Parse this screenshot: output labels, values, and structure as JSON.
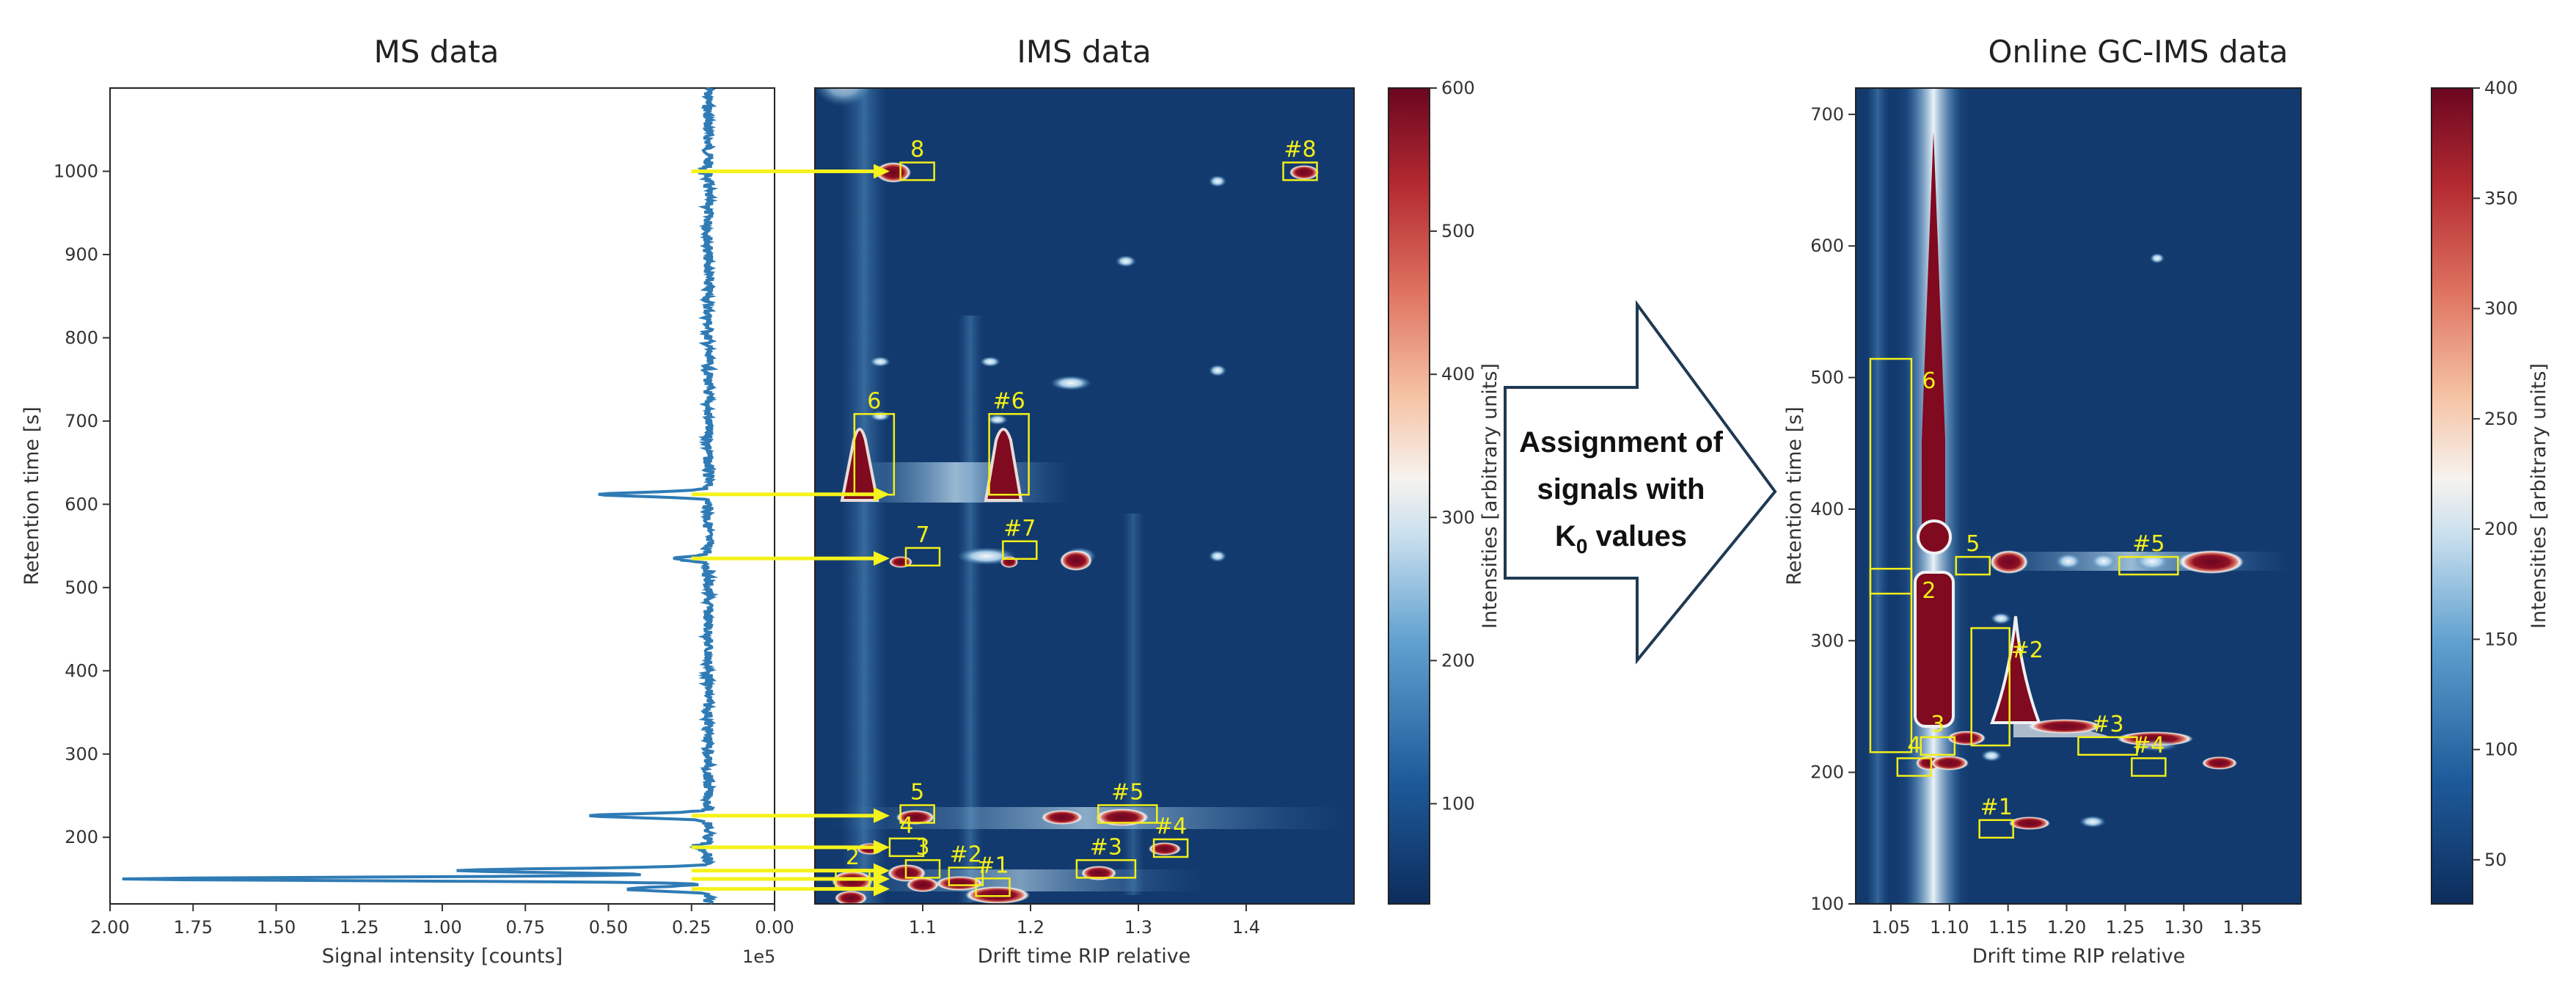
{
  "chart_data": [
    {
      "id": "ms",
      "type": "line",
      "title": "MS data",
      "xlabel": "Signal intensity [counts]",
      "ylabel": "Retention time [s]",
      "x_offset_label": "1e5",
      "xlim": [
        2.0,
        0.0
      ],
      "ylim": [
        120,
        1100
      ],
      "xticks": [
        "2.00",
        "1.75",
        "1.50",
        "1.25",
        "1.00",
        "0.75",
        "0.50",
        "0.25",
        "0.00"
      ],
      "yticks": [
        "200",
        "300",
        "400",
        "500",
        "600",
        "700",
        "800",
        "900",
        "1000"
      ],
      "baseline": 0.2,
      "peaks": [
        {
          "rt": 138,
          "x": 0.45
        },
        {
          "rt": 150,
          "x": 1.95
        },
        {
          "rt": 160,
          "x": 0.95
        },
        {
          "rt": 188,
          "x": 0.25
        },
        {
          "rt": 226,
          "x": 0.55
        },
        {
          "rt": 535,
          "x": 0.3
        },
        {
          "rt": 612,
          "x": 0.53
        },
        {
          "rt": 1000,
          "x": 0.22
        }
      ],
      "color": "#2f7bb5"
    },
    {
      "id": "ims",
      "type": "heatmap",
      "title": "IMS data",
      "xlabel": "Drift time RIP relative",
      "colorbar_label": "Intensities [arbitrary units]",
      "xlim": [
        1.0,
        1.5
      ],
      "ylim": [
        120,
        1100
      ],
      "xticks": [
        "1.1",
        "1.2",
        "1.3",
        "1.4"
      ],
      "colorbar_ticks": [
        "100",
        "200",
        "300",
        "400",
        "500",
        "600"
      ],
      "colorbar_range": [
        30,
        600
      ],
      "annotations": [
        {
          "label": "8",
          "x": 1.095,
          "y": 1000
        },
        {
          "label": "#8",
          "x": 1.45,
          "y": 1000
        },
        {
          "label": "6",
          "x": 1.055,
          "y": 660
        },
        {
          "label": "#6",
          "x": 1.18,
          "y": 660
        },
        {
          "label": "7",
          "x": 1.1,
          "y": 537
        },
        {
          "label": "#7",
          "x": 1.19,
          "y": 545
        },
        {
          "label": "5",
          "x": 1.095,
          "y": 228
        },
        {
          "label": "#5",
          "x": 1.29,
          "y": 228
        },
        {
          "label": "#4",
          "x": 1.33,
          "y": 187
        },
        {
          "label": "4",
          "x": 1.085,
          "y": 188
        },
        {
          "label": "#3",
          "x": 1.27,
          "y": 162
        },
        {
          "label": "3",
          "x": 1.1,
          "y": 162
        },
        {
          "label": "#2",
          "x": 1.14,
          "y": 153
        },
        {
          "label": "2",
          "x": 1.035,
          "y": 150
        },
        {
          "label": "#1",
          "x": 1.165,
          "y": 140
        }
      ],
      "arrows_from_ms_rt": [
        1000,
        612,
        535,
        226,
        188,
        160,
        150,
        138
      ]
    },
    {
      "id": "gcims",
      "type": "heatmap",
      "title": "Online GC-IMS data",
      "xlabel": "Drift time RIP relative",
      "ylabel": "Retention time [s]",
      "colorbar_label": "Intensities [arbitrary units]",
      "xlim": [
        1.02,
        1.4
      ],
      "ylim": [
        100,
        720
      ],
      "xticks": [
        "1.05",
        "1.10",
        "1.15",
        "1.20",
        "1.25",
        "1.30",
        "1.35"
      ],
      "yticks": [
        "100",
        "200",
        "300",
        "400",
        "500",
        "600",
        "700"
      ],
      "colorbar_ticks": [
        "50",
        "100",
        "150",
        "200",
        "250",
        "300",
        "350",
        "400"
      ],
      "colorbar_range": [
        30,
        400
      ],
      "annotations": [
        {
          "label": "6",
          "x": 1.05,
          "y": 425
        },
        {
          "label": "5",
          "x": 1.12,
          "y": 357
        },
        {
          "label": "#5",
          "x": 1.27,
          "y": 357
        },
        {
          "label": "2",
          "x": 1.05,
          "y": 285
        },
        {
          "label": "#2",
          "x": 1.135,
          "y": 265
        },
        {
          "label": "#3",
          "x": 1.235,
          "y": 220
        },
        {
          "label": "3",
          "x": 1.09,
          "y": 220
        },
        {
          "label": "4",
          "x": 1.07,
          "y": 204
        },
        {
          "label": "#4",
          "x": 1.27,
          "y": 204
        },
        {
          "label": "#1",
          "x": 1.14,
          "y": 157
        }
      ]
    }
  ],
  "arrow_block": {
    "line1": "Assignment of",
    "line2": "signals with",
    "line3_main": "K",
    "line3_sub": "0",
    "line3_rest": " values"
  },
  "colors": {
    "annotation": "#f2ef1a",
    "arrow": "#f5f21c",
    "heat_bg": "#133a6e",
    "heat_peak": "#800a1f"
  }
}
